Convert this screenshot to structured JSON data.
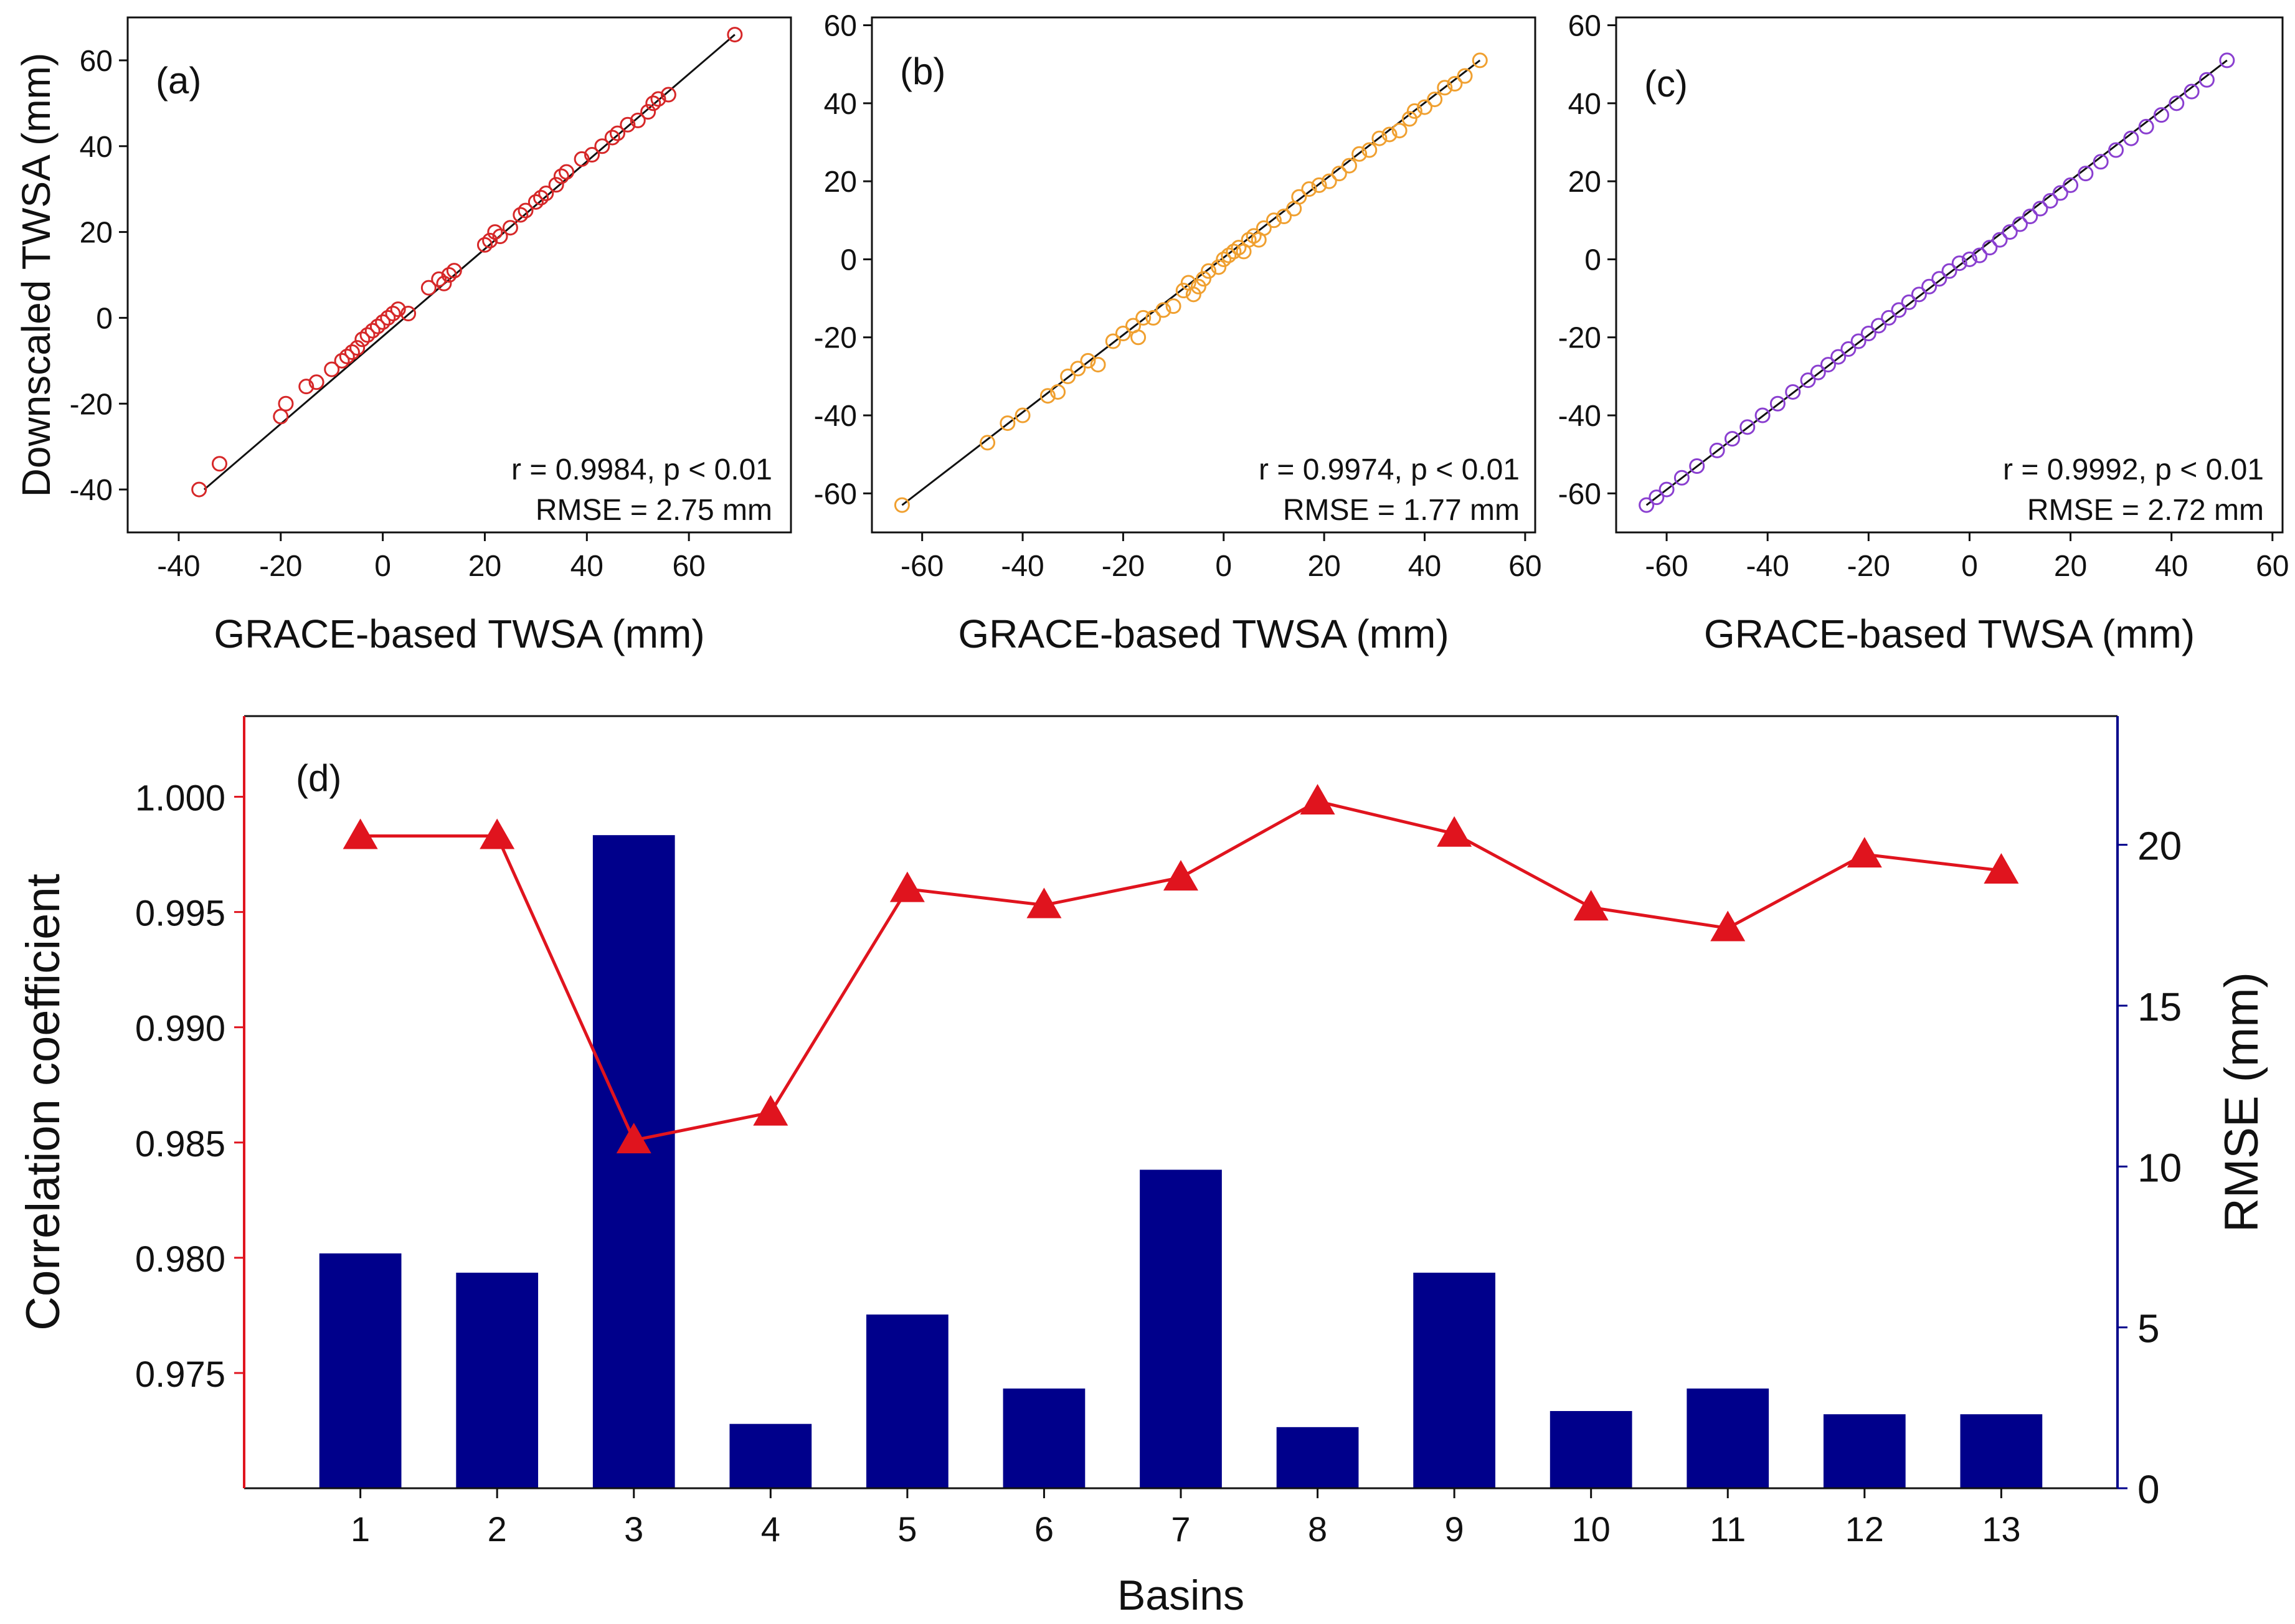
{
  "chart_data": [
    {
      "type": "scatter",
      "panel": "(a)",
      "xlabel": "GRACE-based TWSA (mm)",
      "ylabel": "Downscaled TWSA (mm)",
      "xlim": [
        -50,
        80
      ],
      "ylim": [
        -50,
        70
      ],
      "xticks": [
        -40,
        -20,
        0,
        20,
        40,
        60
      ],
      "yticks": [
        -40,
        -20,
        0,
        20,
        40,
        60
      ],
      "color": "#d62728",
      "stats": [
        "r = 0.9984, p < 0.01",
        "RMSE = 2.75 mm"
      ],
      "fit_line": [
        [
          -35,
          -40
        ],
        [
          69,
          66
        ]
      ],
      "points": [
        [
          -36,
          -40
        ],
        [
          -32,
          -34
        ],
        [
          -20,
          -23
        ],
        [
          -19,
          -20
        ],
        [
          -15,
          -16
        ],
        [
          -13,
          -15
        ],
        [
          -10,
          -12
        ],
        [
          -8,
          -10
        ],
        [
          -7,
          -9
        ],
        [
          -6,
          -8
        ],
        [
          -5,
          -7
        ],
        [
          -4,
          -5
        ],
        [
          -3,
          -4
        ],
        [
          -2,
          -3
        ],
        [
          -1,
          -2
        ],
        [
          0,
          -1
        ],
        [
          1,
          0
        ],
        [
          2,
          1
        ],
        [
          3,
          2
        ],
        [
          5,
          1
        ],
        [
          9,
          7
        ],
        [
          11,
          9
        ],
        [
          12,
          8
        ],
        [
          13,
          10
        ],
        [
          14,
          11
        ],
        [
          20,
          17
        ],
        [
          21,
          18
        ],
        [
          22,
          20
        ],
        [
          23,
          19
        ],
        [
          25,
          21
        ],
        [
          27,
          24
        ],
        [
          28,
          25
        ],
        [
          30,
          27
        ],
        [
          31,
          28
        ],
        [
          32,
          29
        ],
        [
          34,
          31
        ],
        [
          35,
          33
        ],
        [
          36,
          34
        ],
        [
          39,
          37
        ],
        [
          41,
          38
        ],
        [
          43,
          40
        ],
        [
          45,
          42
        ],
        [
          46,
          43
        ],
        [
          48,
          45
        ],
        [
          50,
          46
        ],
        [
          52,
          48
        ],
        [
          53,
          50
        ],
        [
          54,
          51
        ],
        [
          56,
          52
        ],
        [
          69,
          66
        ]
      ]
    },
    {
      "type": "scatter",
      "panel": "(b)",
      "xlabel": "GRACE-based TWSA (mm)",
      "ylabel": "",
      "xlim": [
        -70,
        62
      ],
      "ylim": [
        -70,
        62
      ],
      "xticks": [
        -60,
        -40,
        -20,
        0,
        20,
        40,
        60
      ],
      "yticks": [
        -60,
        -40,
        -20,
        0,
        20,
        40,
        60
      ],
      "color": "#f0a030",
      "stats": [
        "r = 0.9974, p < 0.01",
        "RMSE = 1.77 mm"
      ],
      "fit_line": [
        [
          -64,
          -63
        ],
        [
          51,
          51
        ]
      ],
      "points": [
        [
          -64,
          -63
        ],
        [
          -47,
          -47
        ],
        [
          -43,
          -42
        ],
        [
          -40,
          -40
        ],
        [
          -35,
          -35
        ],
        [
          -33,
          -34
        ],
        [
          -31,
          -30
        ],
        [
          -29,
          -28
        ],
        [
          -27,
          -26
        ],
        [
          -25,
          -27
        ],
        [
          -22,
          -21
        ],
        [
          -20,
          -19
        ],
        [
          -18,
          -17
        ],
        [
          -17,
          -20
        ],
        [
          -16,
          -15
        ],
        [
          -14,
          -15
        ],
        [
          -12,
          -13
        ],
        [
          -10,
          -12
        ],
        [
          -8,
          -8
        ],
        [
          -7,
          -6
        ],
        [
          -6,
          -9
        ],
        [
          -5,
          -7
        ],
        [
          -4,
          -5
        ],
        [
          -3,
          -3
        ],
        [
          -1,
          -2
        ],
        [
          0,
          0
        ],
        [
          1,
          1
        ],
        [
          2,
          2
        ],
        [
          3,
          3
        ],
        [
          4,
          2
        ],
        [
          5,
          5
        ],
        [
          6,
          6
        ],
        [
          7,
          5
        ],
        [
          8,
          8
        ],
        [
          10,
          10
        ],
        [
          12,
          11
        ],
        [
          14,
          13
        ],
        [
          15,
          16
        ],
        [
          17,
          18
        ],
        [
          19,
          19
        ],
        [
          21,
          20
        ],
        [
          23,
          22
        ],
        [
          25,
          24
        ],
        [
          27,
          27
        ],
        [
          29,
          28
        ],
        [
          31,
          31
        ],
        [
          33,
          32
        ],
        [
          35,
          33
        ],
        [
          37,
          36
        ],
        [
          38,
          38
        ],
        [
          40,
          39
        ],
        [
          42,
          41
        ],
        [
          44,
          44
        ],
        [
          46,
          45
        ],
        [
          48,
          47
        ],
        [
          51,
          51
        ]
      ]
    },
    {
      "type": "scatter",
      "panel": "(c)",
      "xlabel": "GRACE-based TWSA (mm)",
      "ylabel": "",
      "xlim": [
        -70,
        62
      ],
      "ylim": [
        -70,
        62
      ],
      "xticks": [
        -60,
        -40,
        -20,
        0,
        20,
        40,
        60
      ],
      "yticks": [
        -60,
        -40,
        -20,
        0,
        20,
        40,
        60
      ],
      "color": "#8a3fd0",
      "stats": [
        "r = 0.9992, p < 0.01",
        "RMSE = 2.72 mm"
      ],
      "fit_line": [
        [
          -64,
          -63
        ],
        [
          51,
          51
        ]
      ],
      "points": [
        [
          -64,
          -63
        ],
        [
          -62,
          -61
        ],
        [
          -60,
          -59
        ],
        [
          -57,
          -56
        ],
        [
          -54,
          -53
        ],
        [
          -50,
          -49
        ],
        [
          -47,
          -46
        ],
        [
          -44,
          -43
        ],
        [
          -41,
          -40
        ],
        [
          -38,
          -37
        ],
        [
          -35,
          -34
        ],
        [
          -32,
          -31
        ],
        [
          -30,
          -29
        ],
        [
          -28,
          -27
        ],
        [
          -26,
          -25
        ],
        [
          -24,
          -23
        ],
        [
          -22,
          -21
        ],
        [
          -20,
          -19
        ],
        [
          -18,
          -17
        ],
        [
          -16,
          -15
        ],
        [
          -14,
          -13
        ],
        [
          -12,
          -11
        ],
        [
          -10,
          -9
        ],
        [
          -8,
          -7
        ],
        [
          -6,
          -5
        ],
        [
          -4,
          -3
        ],
        [
          -2,
          -1
        ],
        [
          0,
          0
        ],
        [
          2,
          1
        ],
        [
          4,
          3
        ],
        [
          6,
          5
        ],
        [
          8,
          7
        ],
        [
          10,
          9
        ],
        [
          12,
          11
        ],
        [
          14,
          13
        ],
        [
          16,
          15
        ],
        [
          18,
          17
        ],
        [
          20,
          19
        ],
        [
          23,
          22
        ],
        [
          26,
          25
        ],
        [
          29,
          28
        ],
        [
          32,
          31
        ],
        [
          35,
          34
        ],
        [
          38,
          37
        ],
        [
          41,
          40
        ],
        [
          44,
          43
        ],
        [
          47,
          46
        ],
        [
          51,
          51
        ]
      ]
    },
    {
      "type": "bar+line",
      "panel": "(d)",
      "xlabel": "Basins",
      "ylabel_left": "Correlation coefficient",
      "ylabel_right": "RMSE (mm)",
      "categories": [
        "1",
        "2",
        "3",
        "4",
        "5",
        "6",
        "7",
        "8",
        "9",
        "10",
        "11",
        "12",
        "13"
      ],
      "ylim_left": [
        0.97,
        1.0035
      ],
      "ylim_right": [
        0,
        24
      ],
      "yticks_left": [
        "0.975",
        "0.980",
        "0.985",
        "0.990",
        "0.995",
        "1.000"
      ],
      "yticks_right": [
        "0",
        "5",
        "10",
        "15",
        "20"
      ],
      "series": [
        {
          "name": "Correlation coefficient",
          "axis": "left",
          "kind": "line",
          "marker": "triangle",
          "color": "#e0141e",
          "values": [
            0.9983,
            0.9983,
            0.9851,
            0.9863,
            0.996,
            0.9953,
            0.9965,
            0.9998,
            0.9984,
            0.9952,
            0.9943,
            0.9975,
            0.9968
          ]
        },
        {
          "name": "RMSE (mm)",
          "axis": "right",
          "kind": "bar",
          "color": "#00008b",
          "values": [
            7.3,
            6.7,
            20.3,
            2.0,
            5.4,
            3.1,
            9.9,
            1.9,
            6.7,
            2.4,
            3.1,
            2.3,
            2.3
          ]
        }
      ]
    }
  ]
}
